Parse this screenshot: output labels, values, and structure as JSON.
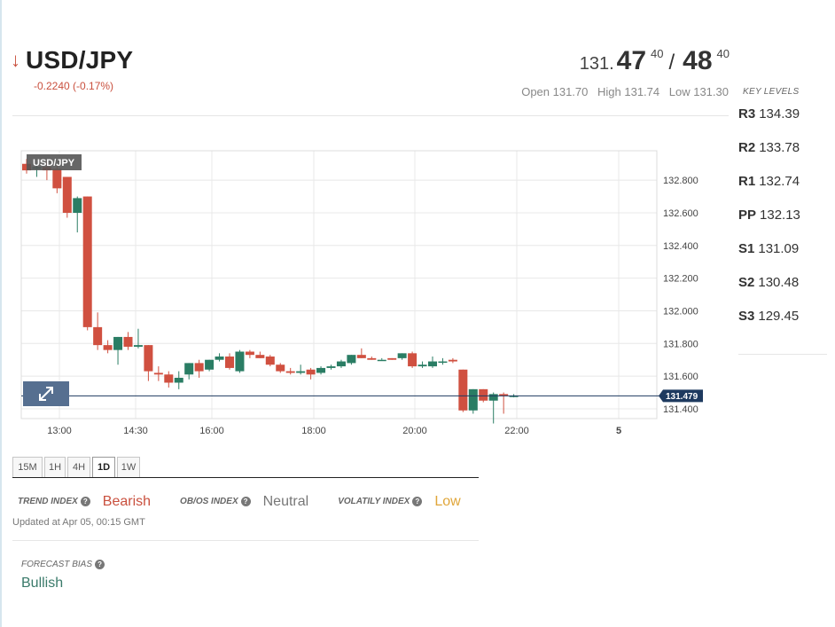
{
  "header": {
    "pair": "USD/JPY",
    "change": "-0.2240 (-0.17%)",
    "bid_int": "131.",
    "bid_big": "47",
    "bid_sup": "40",
    "separator": "/",
    "ask_big": "48",
    "ask_sup": "40",
    "open": "Open 131.70",
    "high": "High 131.74",
    "low": "Low 131.30"
  },
  "key_levels": {
    "title": "KEY LEVELS",
    "items": [
      {
        "label": "R3",
        "value": "134.39"
      },
      {
        "label": "R2",
        "value": "133.78"
      },
      {
        "label": "R1",
        "value": "132.74"
      },
      {
        "label": "PP",
        "value": "132.13"
      },
      {
        "label": "S1",
        "value": "131.09"
      },
      {
        "label": "S2",
        "value": "130.48"
      },
      {
        "label": "S3",
        "value": "129.45"
      }
    ]
  },
  "chart_data": {
    "type": "candlestick",
    "legend": "USD/JPY",
    "current_price": "131.479",
    "current_value": 131.479,
    "ylim": [
      131.34,
      132.98
    ],
    "y_ticks": [
      "132.800",
      "132.600",
      "132.400",
      "132.200",
      "132.000",
      "131.800",
      "131.600",
      "131.400"
    ],
    "x_ticks": [
      "13:00",
      "14:30",
      "16:00",
      "18:00",
      "20:00",
      "22:00",
      "5"
    ],
    "candles": [
      {
        "o": 132.9,
        "h": 132.93,
        "l": 132.84,
        "c": 132.86
      },
      {
        "o": 132.87,
        "h": 132.9,
        "l": 132.82,
        "c": 132.88
      },
      {
        "o": 132.88,
        "h": 132.92,
        "l": 132.8,
        "c": 132.86
      },
      {
        "o": 132.87,
        "h": 132.89,
        "l": 132.72,
        "c": 132.75
      },
      {
        "o": 132.82,
        "h": 132.82,
        "l": 132.57,
        "c": 132.6
      },
      {
        "o": 132.6,
        "h": 132.7,
        "l": 132.48,
        "c": 132.69
      },
      {
        "o": 132.7,
        "h": 132.7,
        "l": 131.88,
        "c": 131.9
      },
      {
        "o": 131.9,
        "h": 131.99,
        "l": 131.76,
        "c": 131.79
      },
      {
        "o": 131.79,
        "h": 131.82,
        "l": 131.74,
        "c": 131.76
      },
      {
        "o": 131.76,
        "h": 131.84,
        "l": 131.67,
        "c": 131.84
      },
      {
        "o": 131.84,
        "h": 131.87,
        "l": 131.76,
        "c": 131.78
      },
      {
        "o": 131.78,
        "h": 131.89,
        "l": 131.77,
        "c": 131.79
      },
      {
        "o": 131.79,
        "h": 131.79,
        "l": 131.57,
        "c": 131.63
      },
      {
        "o": 131.62,
        "h": 131.66,
        "l": 131.57,
        "c": 131.61
      },
      {
        "o": 131.61,
        "h": 131.63,
        "l": 131.53,
        "c": 131.56
      },
      {
        "o": 131.56,
        "h": 131.63,
        "l": 131.52,
        "c": 131.59
      },
      {
        "o": 131.61,
        "h": 131.68,
        "l": 131.58,
        "c": 131.68
      },
      {
        "o": 131.68,
        "h": 131.7,
        "l": 131.59,
        "c": 131.63
      },
      {
        "o": 131.64,
        "h": 131.7,
        "l": 131.63,
        "c": 131.7
      },
      {
        "o": 131.7,
        "h": 131.74,
        "l": 131.69,
        "c": 131.72
      },
      {
        "o": 131.72,
        "h": 131.74,
        "l": 131.64,
        "c": 131.65
      },
      {
        "o": 131.63,
        "h": 131.76,
        "l": 131.62,
        "c": 131.75
      },
      {
        "o": 131.75,
        "h": 131.76,
        "l": 131.71,
        "c": 131.73
      },
      {
        "o": 131.73,
        "h": 131.75,
        "l": 131.71,
        "c": 131.71
      },
      {
        "o": 131.72,
        "h": 131.73,
        "l": 131.66,
        "c": 131.67
      },
      {
        "o": 131.67,
        "h": 131.68,
        "l": 131.62,
        "c": 131.63
      },
      {
        "o": 131.63,
        "h": 131.65,
        "l": 131.61,
        "c": 131.62
      },
      {
        "o": 131.62,
        "h": 131.67,
        "l": 131.61,
        "c": 131.63
      },
      {
        "o": 131.64,
        "h": 131.65,
        "l": 131.58,
        "c": 131.61
      },
      {
        "o": 131.62,
        "h": 131.66,
        "l": 131.61,
        "c": 131.65
      },
      {
        "o": 131.65,
        "h": 131.67,
        "l": 131.64,
        "c": 131.66
      },
      {
        "o": 131.66,
        "h": 131.7,
        "l": 131.65,
        "c": 131.69
      },
      {
        "o": 131.68,
        "h": 131.73,
        "l": 131.67,
        "c": 131.73
      },
      {
        "o": 131.73,
        "h": 131.77,
        "l": 131.71,
        "c": 131.71
      },
      {
        "o": 131.71,
        "h": 131.72,
        "l": 131.7,
        "c": 131.7
      },
      {
        "o": 131.7,
        "h": 131.71,
        "l": 131.7,
        "c": 131.7
      },
      {
        "o": 131.71,
        "h": 131.71,
        "l": 131.7,
        "c": 131.7
      },
      {
        "o": 131.71,
        "h": 131.74,
        "l": 131.7,
        "c": 131.74
      },
      {
        "o": 131.74,
        "h": 131.75,
        "l": 131.65,
        "c": 131.66
      },
      {
        "o": 131.66,
        "h": 131.69,
        "l": 131.65,
        "c": 131.67
      },
      {
        "o": 131.66,
        "h": 131.72,
        "l": 131.65,
        "c": 131.69
      },
      {
        "o": 131.69,
        "h": 131.71,
        "l": 131.67,
        "c": 131.69
      },
      {
        "o": 131.7,
        "h": 131.71,
        "l": 131.68,
        "c": 131.69
      },
      {
        "o": 131.64,
        "h": 131.64,
        "l": 131.38,
        "c": 131.39
      },
      {
        "o": 131.39,
        "h": 131.52,
        "l": 131.37,
        "c": 131.52
      },
      {
        "o": 131.52,
        "h": 131.52,
        "l": 131.44,
        "c": 131.45
      },
      {
        "o": 131.45,
        "h": 131.5,
        "l": 131.31,
        "c": 131.49
      },
      {
        "o": 131.49,
        "h": 131.5,
        "l": 131.37,
        "c": 131.48
      },
      {
        "o": 131.48,
        "h": 131.49,
        "l": 131.47,
        "c": 131.48
      }
    ],
    "colors": {
      "up": "#2a7d64",
      "down": "#d05040",
      "grid": "#e8e8e8",
      "price_line": "#1e3a5f"
    }
  },
  "timeframes": [
    {
      "label": "15M",
      "active": false
    },
    {
      "label": "1H",
      "active": false
    },
    {
      "label": "4H",
      "active": false
    },
    {
      "label": "1D",
      "active": true
    },
    {
      "label": "1W",
      "active": false
    }
  ],
  "indexes": {
    "trend_label": "TREND INDEX",
    "trend_value": "Bearish",
    "trend_color": "#c9503e",
    "obos_label": "OB/OS INDEX",
    "obos_value": "Neutral",
    "obos_color": "#777777",
    "vol_label": "VOLATILY INDEX",
    "vol_value": "Low",
    "vol_color": "#e0a63a",
    "help_glyph": "?",
    "updated": "Updated at Apr 05, 00:15 GMT"
  },
  "forecast": {
    "label": "FORECAST BIAS",
    "value": "Bullish",
    "help_glyph": "?"
  }
}
